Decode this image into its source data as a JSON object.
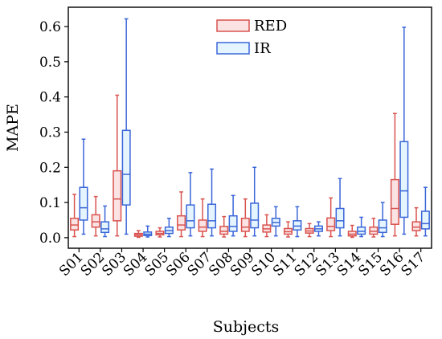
{
  "chart_data": {
    "type": "box",
    "xlabel": "Subjects",
    "ylabel": "MAPE",
    "ylim": [
      -0.03,
      0.655
    ],
    "yticks": [
      0.0,
      0.1,
      0.2,
      0.3,
      0.4,
      0.5,
      0.6
    ],
    "ytick_labels": [
      "0.0",
      "0.1",
      "0.2",
      "0.3",
      "0.4",
      "0.5",
      "0.6"
    ],
    "categories": [
      "S01",
      "S02",
      "S03",
      "S04",
      "S05",
      "S06",
      "S07",
      "S08",
      "S09",
      "S10",
      "S11",
      "S12",
      "S13",
      "S14",
      "S15",
      "S16",
      "S17"
    ],
    "legend_position": "top-center",
    "grid": false,
    "series": [
      {
        "name": "RED",
        "edge_color": "#d9534f",
        "fill_color": "#fbe3e3",
        "boxes": [
          {
            "whislo": 0.003,
            "q1": 0.022,
            "med": 0.036,
            "q3": 0.055,
            "whishi": 0.123
          },
          {
            "whislo": 0.005,
            "q1": 0.03,
            "med": 0.045,
            "q3": 0.065,
            "whishi": 0.117
          },
          {
            "whislo": 0.005,
            "q1": 0.048,
            "med": 0.11,
            "q3": 0.19,
            "whishi": 0.405
          },
          {
            "whislo": 0.001,
            "q1": 0.004,
            "med": 0.008,
            "q3": 0.012,
            "whishi": 0.02
          },
          {
            "whislo": 0.002,
            "q1": 0.008,
            "med": 0.012,
            "q3": 0.018,
            "whishi": 0.028
          },
          {
            "whislo": 0.003,
            "q1": 0.022,
            "med": 0.036,
            "q3": 0.062,
            "whishi": 0.13
          },
          {
            "whislo": 0.003,
            "q1": 0.018,
            "med": 0.03,
            "q3": 0.05,
            "whishi": 0.11
          },
          {
            "whislo": 0.002,
            "q1": 0.01,
            "med": 0.018,
            "q3": 0.032,
            "whishi": 0.06
          },
          {
            "whislo": 0.003,
            "q1": 0.018,
            "med": 0.03,
            "q3": 0.055,
            "whishi": 0.11
          },
          {
            "whislo": 0.003,
            "q1": 0.016,
            "med": 0.025,
            "q3": 0.036,
            "whishi": 0.065
          },
          {
            "whislo": 0.002,
            "q1": 0.01,
            "med": 0.017,
            "q3": 0.026,
            "whishi": 0.045
          },
          {
            "whislo": 0.003,
            "q1": 0.013,
            "med": 0.019,
            "q3": 0.026,
            "whishi": 0.04
          },
          {
            "whislo": 0.003,
            "q1": 0.02,
            "med": 0.032,
            "q3": 0.056,
            "whishi": 0.113
          },
          {
            "whislo": 0.001,
            "q1": 0.005,
            "med": 0.01,
            "q3": 0.018,
            "whishi": 0.035
          },
          {
            "whislo": 0.002,
            "q1": 0.01,
            "med": 0.018,
            "q3": 0.03,
            "whishi": 0.055
          },
          {
            "whislo": 0.005,
            "q1": 0.038,
            "med": 0.083,
            "q3": 0.165,
            "whishi": 0.353
          },
          {
            "whislo": 0.005,
            "q1": 0.02,
            "med": 0.03,
            "q3": 0.045,
            "whishi": 0.085
          }
        ]
      },
      {
        "name": "IR",
        "edge_color": "#3a66d8",
        "fill_color": "#e4f5ff",
        "boxes": [
          {
            "whislo": 0.01,
            "q1": 0.05,
            "med": 0.085,
            "q3": 0.143,
            "whishi": 0.28
          },
          {
            "whislo": 0.003,
            "q1": 0.015,
            "med": 0.025,
            "q3": 0.045,
            "whishi": 0.09
          },
          {
            "whislo": 0.01,
            "q1": 0.093,
            "med": 0.18,
            "q3": 0.305,
            "whishi": 0.622
          },
          {
            "whislo": 0.002,
            "q1": 0.006,
            "med": 0.01,
            "q3": 0.016,
            "whishi": 0.033
          },
          {
            "whislo": 0.003,
            "q1": 0.012,
            "med": 0.02,
            "q3": 0.03,
            "whishi": 0.055
          },
          {
            "whislo": 0.005,
            "q1": 0.028,
            "med": 0.048,
            "q3": 0.093,
            "whishi": 0.185
          },
          {
            "whislo": 0.005,
            "q1": 0.028,
            "med": 0.048,
            "q3": 0.095,
            "whishi": 0.195
          },
          {
            "whislo": 0.005,
            "q1": 0.018,
            "med": 0.032,
            "q3": 0.062,
            "whishi": 0.12
          },
          {
            "whislo": 0.005,
            "q1": 0.028,
            "med": 0.05,
            "q3": 0.098,
            "whishi": 0.2
          },
          {
            "whislo": 0.005,
            "q1": 0.033,
            "med": 0.043,
            "q3": 0.055,
            "whishi": 0.088
          },
          {
            "whislo": 0.003,
            "q1": 0.022,
            "med": 0.033,
            "q3": 0.048,
            "whishi": 0.088
          },
          {
            "whislo": 0.005,
            "q1": 0.018,
            "med": 0.025,
            "q3": 0.033,
            "whishi": 0.045
          },
          {
            "whislo": 0.005,
            "q1": 0.028,
            "med": 0.048,
            "q3": 0.083,
            "whishi": 0.168
          },
          {
            "whislo": 0.003,
            "q1": 0.01,
            "med": 0.018,
            "q3": 0.03,
            "whishi": 0.058
          },
          {
            "whislo": 0.003,
            "q1": 0.015,
            "med": 0.028,
            "q3": 0.05,
            "whishi": 0.1
          },
          {
            "whislo": 0.01,
            "q1": 0.058,
            "med": 0.133,
            "q3": 0.273,
            "whishi": 0.598
          },
          {
            "whislo": 0.005,
            "q1": 0.025,
            "med": 0.04,
            "q3": 0.075,
            "whishi": 0.143
          }
        ]
      }
    ]
  }
}
